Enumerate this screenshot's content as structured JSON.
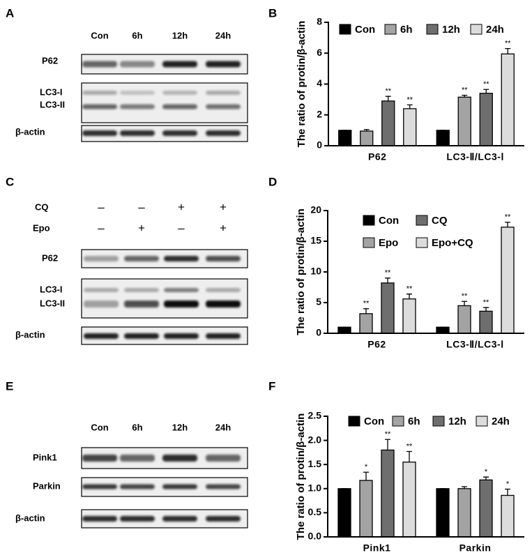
{
  "figure": {
    "panel_labels": [
      "A",
      "B",
      "C",
      "D",
      "E",
      "F"
    ],
    "blot_a": {
      "lanes": [
        "Con",
        "6h",
        "12h",
        "24h"
      ],
      "rows": [
        "P62",
        "LC3-I",
        "LC3-II",
        "β-actin"
      ]
    },
    "blot_c": {
      "treatments": [
        {
          "name": "CQ",
          "signs": [
            "–",
            "–",
            "+",
            "+"
          ]
        },
        {
          "name": "Epo",
          "signs": [
            "–",
            "+",
            "–",
            "+"
          ]
        }
      ],
      "rows": [
        "P62",
        "LC3-I",
        "LC3-II",
        "β-actin"
      ]
    },
    "blot_e": {
      "lanes": [
        "Con",
        "6h",
        "12h",
        "24h"
      ],
      "rows": [
        "Pink1",
        "Parkin",
        "β-actin"
      ]
    }
  },
  "chart_data": [
    {
      "type": "bar",
      "ylabel": "The ratio of protin/β-actin",
      "categories": [
        "P62",
        "LC3-Ⅱ/LC3-Ⅰ"
      ],
      "ylim": [
        0,
        8
      ],
      "yticks": [
        0,
        2,
        4,
        6,
        8
      ],
      "series": [
        {
          "name": "Con",
          "color": "#000000",
          "values": [
            1,
            1
          ],
          "errors": [
            0,
            0
          ],
          "annotations": [
            null,
            null
          ]
        },
        {
          "name": "6h",
          "color": "#a3a3a3",
          "values": [
            0.95,
            3.15
          ],
          "errors": [
            0.1,
            0.12
          ],
          "annotations": [
            null,
            "**"
          ]
        },
        {
          "name": "12h",
          "color": "#6e6e6e",
          "values": [
            2.9,
            3.4
          ],
          "errors": [
            0.3,
            0.25
          ],
          "annotations": [
            "**",
            "**"
          ]
        },
        {
          "name": "24h",
          "color": "#dcdcdc",
          "values": [
            2.4,
            5.95
          ],
          "errors": [
            0.25,
            0.35
          ],
          "annotations": [
            "**",
            "**"
          ]
        }
      ]
    },
    {
      "type": "bar",
      "ylabel": "The ratio of protin/β-actin",
      "categories": [
        "P62",
        "LC3-Ⅱ/LC3-Ⅰ"
      ],
      "ylim": [
        0,
        20
      ],
      "yticks": [
        0,
        5,
        10,
        15,
        20
      ],
      "series": [
        {
          "name": "Con",
          "color": "#000000",
          "values": [
            1,
            1
          ],
          "errors": [
            0,
            0
          ],
          "annotations": [
            null,
            null
          ]
        },
        {
          "name": "Epo",
          "color": "#a3a3a3",
          "values": [
            3.2,
            4.5
          ],
          "errors": [
            0.8,
            0.7
          ],
          "annotations": [
            "**",
            "**"
          ]
        },
        {
          "name": "CQ",
          "color": "#6e6e6e",
          "values": [
            8.2,
            3.6
          ],
          "errors": [
            0.8,
            0.6
          ],
          "annotations": [
            "**",
            "**"
          ]
        },
        {
          "name": "Epo+CQ",
          "color": "#dcdcdc",
          "values": [
            5.6,
            17.3
          ],
          "errors": [
            0.8,
            0.8
          ],
          "annotations": [
            "**",
            "**"
          ]
        }
      ]
    },
    {
      "type": "bar",
      "ylabel": "The ratio of protin/β-actin",
      "categories": [
        "Pink1",
        "Parkin"
      ],
      "ylim": [
        0,
        2.5
      ],
      "yticks": [
        {
          "value": 0,
          "label": "0.0"
        },
        {
          "value": 0.5,
          "label": "0.5"
        },
        {
          "value": 1,
          "label": "1.0"
        },
        {
          "value": 1.5,
          "label": "1.5"
        },
        {
          "value": 2,
          "label": "2.0"
        },
        {
          "value": 2.5,
          "label": "2.5"
        }
      ],
      "series": [
        {
          "name": "Con",
          "color": "#000000",
          "values": [
            1,
            1
          ],
          "errors": [
            0,
            0
          ],
          "annotations": [
            null,
            null
          ]
        },
        {
          "name": "6h",
          "color": "#a3a3a3",
          "values": [
            1.17,
            1.0
          ],
          "errors": [
            0.17,
            0.04
          ],
          "annotations": [
            "*",
            null
          ]
        },
        {
          "name": "12h",
          "color": "#6e6e6e",
          "values": [
            1.8,
            1.18
          ],
          "errors": [
            0.22,
            0.06
          ],
          "annotations": [
            "**",
            "*"
          ]
        },
        {
          "name": "24h",
          "color": "#dcdcdc",
          "values": [
            1.55,
            0.86
          ],
          "errors": [
            0.22,
            0.13
          ],
          "annotations": [
            "**",
            "*"
          ]
        }
      ]
    }
  ]
}
